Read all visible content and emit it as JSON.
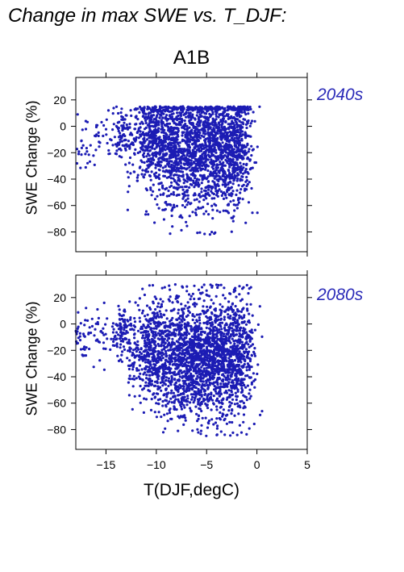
{
  "page": {
    "title": "Change in max SWE vs. T_DJF:",
    "scenario": "A1B"
  },
  "colors": {
    "points": "#1c1cb4",
    "period_label": "#2a2ab8",
    "axis": "#000000"
  },
  "chart_data": [
    {
      "type": "scatter",
      "period": "2040s",
      "xlabel": "T(DJF,degC)",
      "ylabel": "SWE Change (%)",
      "xlim": [
        -18,
        5
      ],
      "ylim": [
        -95,
        37
      ],
      "xticks": [
        -15,
        -10,
        -5,
        0,
        5
      ],
      "xtick_labels": [
        "−15",
        "−10",
        "−5",
        "0",
        "5"
      ],
      "yticks": [
        20,
        0,
        -20,
        -40,
        -60,
        -80
      ],
      "ytick_labels": [
        "20",
        "0",
        "−20",
        "−40",
        "−60",
        "−80"
      ],
      "show_x_tick_labels": false,
      "point_cloud": {
        "n_points": 2600,
        "x_range": [
          -18,
          0.7
        ],
        "dense_x_range": [
          -11,
          -1
        ],
        "y_max": 15,
        "y_min": -82,
        "typical_y_center": -15
      }
    },
    {
      "type": "scatter",
      "period": "2080s",
      "xlabel": "T(DJF,degC)",
      "ylabel": "SWE Change (%)",
      "xlim": [
        -18,
        5
      ],
      "ylim": [
        -95,
        37
      ],
      "xticks": [
        -15,
        -10,
        -5,
        0,
        5
      ],
      "xtick_labels": [
        "−15",
        "−10",
        "−5",
        "0",
        "5"
      ],
      "yticks": [
        20,
        0,
        -20,
        -40,
        -60,
        -80
      ],
      "ytick_labels": [
        "20",
        "0",
        "−20",
        "−40",
        "−60",
        "−80"
      ],
      "show_x_tick_labels": true,
      "point_cloud": {
        "n_points": 2800,
        "x_range": [
          -18,
          0.6
        ],
        "dense_x_range": [
          -11,
          -1
        ],
        "y_max": 30,
        "y_min": -85,
        "typical_y_center": -25
      }
    }
  ]
}
